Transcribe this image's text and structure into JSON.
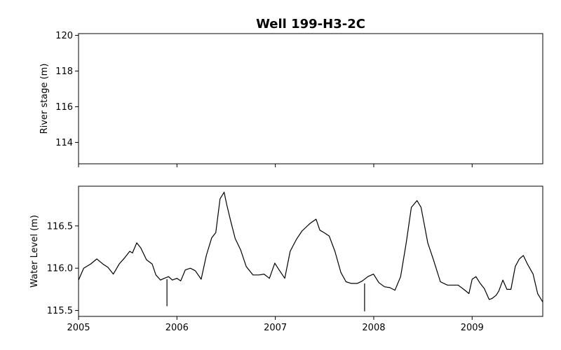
{
  "chart_data": [
    {
      "type": "line",
      "title": "Well 199-H3-2C",
      "xlabel": "",
      "ylabel": "River stage (m)",
      "xlim": [
        "2005-01-01",
        "2009-09-20"
      ],
      "ylim": [
        112.8,
        120.1
      ],
      "yticks": [
        "114",
        "116",
        "118",
        "120"
      ],
      "x_ticks_labeled": false,
      "grid": false,
      "series": []
    },
    {
      "type": "line",
      "title": "",
      "xlabel": "",
      "ylabel": "Water Level (m)",
      "xlim": [
        "2005-01-01",
        "2009-09-20"
      ],
      "ylim": [
        115.43,
        116.97
      ],
      "xticks": [
        "2005",
        "2006",
        "2007",
        "2008",
        "2009"
      ],
      "yticks": [
        "115.5",
        "116.0",
        "116.5"
      ],
      "grid": false,
      "series": [
        {
          "color": "#000000",
          "x": [
            "2005-01-01",
            "2005-01-20",
            "2005-02-15",
            "2005-03-10",
            "2005-04-01",
            "2005-04-20",
            "2005-05-10",
            "2005-06-01",
            "2005-06-20",
            "2005-07-10",
            "2005-07-20",
            "2005-08-05",
            "2005-08-20",
            "2005-09-10",
            "2005-10-01",
            "2005-10-15",
            "2005-11-01",
            "2005-11-15",
            "2005-12-01",
            "2005-12-15",
            "2006-01-01",
            "2006-01-15",
            "2006-02-01",
            "2006-02-20",
            "2006-03-10",
            "2006-04-01",
            "2006-04-20",
            "2006-05-10",
            "2006-05-25",
            "2006-06-10",
            "2006-06-25",
            "2006-07-05",
            "2006-07-20",
            "2006-08-05",
            "2006-08-25",
            "2006-09-15",
            "2006-10-10",
            "2006-11-01",
            "2006-11-20",
            "2006-12-10",
            "2006-12-30",
            "2007-01-15",
            "2007-02-05",
            "2007-02-25",
            "2007-03-20",
            "2007-04-10",
            "2007-05-10",
            "2007-06-01",
            "2007-06-15",
            "2007-07-01",
            "2007-07-20",
            "2007-08-10",
            "2007-09-01",
            "2007-09-20",
            "2007-10-10",
            "2007-11-01",
            "2007-11-20",
            "2007-12-10",
            "2007-12-31",
            "2008-01-20",
            "2008-02-10",
            "2008-03-01",
            "2008-03-20",
            "2008-04-10",
            "2008-05-01",
            "2008-05-20",
            "2008-06-10",
            "2008-06-25",
            "2008-07-05",
            "2008-07-20",
            "2008-08-10",
            "2008-09-05",
            "2008-10-01",
            "2008-10-20",
            "2008-11-10",
            "2008-12-01",
            "2008-12-20",
            "2009-01-01",
            "2009-01-15",
            "2009-01-31",
            "2009-02-15",
            "2009-03-05",
            "2009-03-15",
            "2009-03-31",
            "2009-04-10",
            "2009-04-25",
            "2009-05-10",
            "2009-05-25",
            "2009-06-10",
            "2009-06-25",
            "2009-07-10",
            "2009-07-25",
            "2009-08-15",
            "2009-09-01",
            "2009-09-20"
          ],
          "y": [
            115.86,
            116.0,
            116.05,
            116.11,
            116.05,
            116.01,
            115.93,
            116.05,
            116.12,
            116.2,
            116.18,
            116.3,
            116.24,
            116.1,
            116.05,
            115.92,
            115.86,
            115.88,
            115.9,
            115.86,
            115.88,
            115.85,
            115.98,
            116.0,
            115.97,
            115.87,
            116.15,
            116.36,
            116.42,
            116.82,
            116.9,
            116.75,
            116.55,
            116.35,
            116.22,
            116.02,
            115.92,
            115.92,
            115.93,
            115.88,
            116.06,
            115.98,
            115.88,
            116.2,
            116.34,
            116.44,
            116.53,
            116.58,
            116.45,
            116.42,
            116.38,
            116.2,
            115.95,
            115.84,
            115.82,
            115.82,
            115.85,
            115.9,
            115.93,
            115.83,
            115.78,
            115.77,
            115.74,
            115.9,
            116.3,
            116.72,
            116.8,
            116.72,
            116.55,
            116.3,
            116.1,
            115.84,
            115.8,
            115.8,
            115.8,
            115.75,
            115.7,
            115.87,
            115.9,
            115.82,
            115.76,
            115.63,
            115.64,
            115.68,
            115.73,
            115.86,
            115.75,
            115.75,
            116.02,
            116.11,
            116.15,
            116.05,
            115.93,
            115.7,
            115.6
          ]
        }
      ],
      "annotations": [
        {
          "x": "2005-11-25",
          "y_from": 115.87,
          "y_to": 115.55
        },
        {
          "x": "2007-11-28",
          "y_from": 115.82,
          "y_to": 115.49
        }
      ]
    }
  ]
}
